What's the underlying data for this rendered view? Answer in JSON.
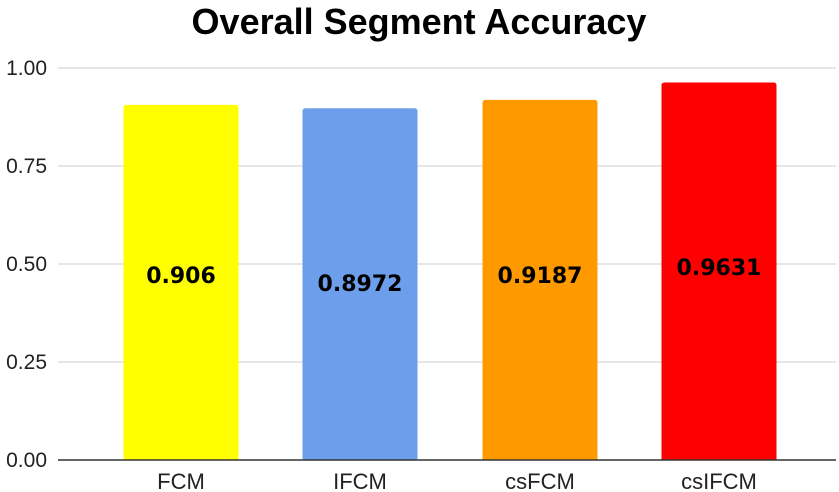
{
  "chart_data": {
    "type": "bar",
    "title": "Overall Segment Accuracy",
    "xlabel": "",
    "ylabel": "",
    "categories": [
      "FCM",
      "IFCM",
      "csFCM",
      "csIFCM"
    ],
    "values": [
      0.906,
      0.8972,
      0.9187,
      0.9631
    ],
    "value_labels": [
      "0.906",
      "0.8972",
      "0.9187",
      "0.9631"
    ],
    "colors": [
      "#ffff00",
      "#6d9eeb",
      "#ff9900",
      "#ff0000"
    ],
    "ylim": [
      0,
      1
    ],
    "yticks": [
      0,
      0.25,
      0.5,
      0.75,
      1
    ],
    "ytick_labels": [
      "0.00",
      "0.25",
      "0.50",
      "0.75",
      "1.00"
    ],
    "grid": true,
    "legend": "none"
  }
}
